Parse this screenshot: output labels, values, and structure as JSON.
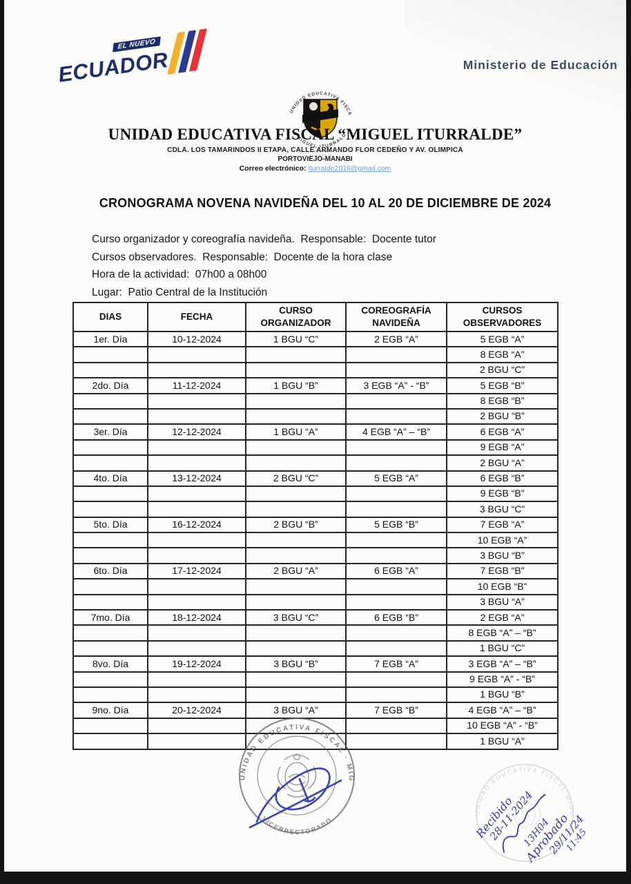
{
  "header": {
    "logo": {
      "line1": "EL NUEVO",
      "line2": "ECUADOR",
      "navy": "#1b2d6b",
      "stripe_colors": [
        "#f3b229",
        "#2b3990",
        "#e63238"
      ]
    },
    "ministry": "Ministerio de Educación",
    "crest": {
      "top_arc": "UNIDAD EDUCATIVA FISCAL",
      "bottom_arc": "MIGUEL ITURRALDE"
    },
    "school_name": "UNIDAD EDUCATIVA FISCAL “MIGUEL ITURRALDE”",
    "address_line1": "CDLA. LOS TAMARINDOS II ETAPA, CALLE ARMANDO FLOR CEDEÑO Y AV. OLIMPICA",
    "address_line2": "PORTOVIEJO-MANABI",
    "email_label": "Correo electrónico: ",
    "email": "iturralde2016@gmail.com"
  },
  "title": "CRONOGRAMA NOVENA NAVIDEÑA DEL 10 AL 20 DE DICIEMBRE DE 2024",
  "intro": [
    "Curso organizador y coreografía navideña.  Responsable:  Docente tutor",
    "Cursos observadores.  Responsable:  Docente de la hora clase",
    "Hora de la actividad:  07h00 a 08h00",
    "Lugar:  Patio Central de la Institución"
  ],
  "table": {
    "columns": [
      [
        "DIAS"
      ],
      [
        "FECHA"
      ],
      [
        "CURSO",
        "ORGANIZADOR"
      ],
      [
        "COREOGRAFÍA",
        "NAVIDEÑA"
      ],
      [
        "CURSOS",
        "OBSERVADORES"
      ]
    ],
    "rows": [
      [
        "1er. Día",
        "10-12-2024",
        "1 BGU “C”",
        "2 EGB “A”",
        "5 EGB “A”"
      ],
      [
        "",
        "",
        "",
        "",
        "8 EGB “A”"
      ],
      [
        "",
        "",
        "",
        "",
        "2 BGU “C”"
      ],
      [
        "2do. Día",
        "11-12-2024",
        "1 BGU “B”",
        "3 EGB “A” - “B”",
        "5 EGB “B”"
      ],
      [
        "",
        "",
        "",
        "",
        "8 EGB “B”"
      ],
      [
        "",
        "",
        "",
        "",
        "2 BGU “B”"
      ],
      [
        "3er. Día",
        "12-12-2024",
        "1 BGU “A”",
        "4 EGB “A” – “B”",
        "6 EGB “A”"
      ],
      [
        "",
        "",
        "",
        "",
        "9 EGB “A”"
      ],
      [
        "",
        "",
        "",
        "",
        "2 BGU “A”"
      ],
      [
        "4to. Día",
        "13-12-2024",
        "2 BGU “C”",
        "5 EGB “A”",
        "6 EGB “B”"
      ],
      [
        "",
        "",
        "",
        "",
        "9 EGB “B”"
      ],
      [
        "",
        "",
        "",
        "",
        "3 BGU “C”"
      ],
      [
        "5to. Día",
        "16-12-2024",
        "2 BGU “B”",
        "5 EGB “B”",
        "7 EGB “A”"
      ],
      [
        "",
        "",
        "",
        "",
        "10 EGB “A”"
      ],
      [
        "",
        "",
        "",
        "",
        "3 BGU “B”"
      ],
      [
        "6to. Día",
        "17-12-2024",
        "2 BGU “A”",
        "6 EGB “A”",
        "7 EGB “B”"
      ],
      [
        "",
        "",
        "",
        "",
        "10 EGB “B”"
      ],
      [
        "",
        "",
        "",
        "",
        "3 BGU “A”"
      ],
      [
        "7mo. Día",
        "18-12-2024",
        "3 BGU “C”",
        "6 EGB “B”",
        "2 EGB “A”"
      ],
      [
        "",
        "",
        "",
        "",
        "8 EGB “A” – “B”"
      ],
      [
        "",
        "",
        "",
        "",
        "1 BGU “C”"
      ],
      [
        "8vo. Día",
        "19-12-2024",
        "3 BGU “B”",
        "7 EGB “A”",
        "3 EGB “A” – “B”"
      ],
      [
        "",
        "",
        "",
        "",
        "9 EGB “A” - “B”"
      ],
      [
        "",
        "",
        "",
        "",
        "1 BGU “B”"
      ],
      [
        "9no. Día",
        "20-12-2024",
        "3 BGU “A”",
        "7 EGB “B”",
        "4 EGB “A” – “B”"
      ],
      [
        "",
        "",
        "",
        "",
        "10 EGB “A” - “B”"
      ],
      [
        "",
        "",
        "",
        "",
        "1 BGU “A”"
      ]
    ]
  },
  "stamps": {
    "center": {
      "ring_text": "UNIDAD EDUCATIVA FISCAL  ·  MIGUEL ITURRALDE",
      "bottom_text": "VICERRECTORADO"
    },
    "right_faint": {
      "ring_text": "UNIDAD EDUCATIVA FISCAL MIGUEL"
    },
    "handwriting": [
      "Recibido",
      "28-11-2024",
      "13H04",
      "Aprobado",
      "29/11/24",
      "11:45"
    ],
    "ink_color": "#333bb0"
  }
}
